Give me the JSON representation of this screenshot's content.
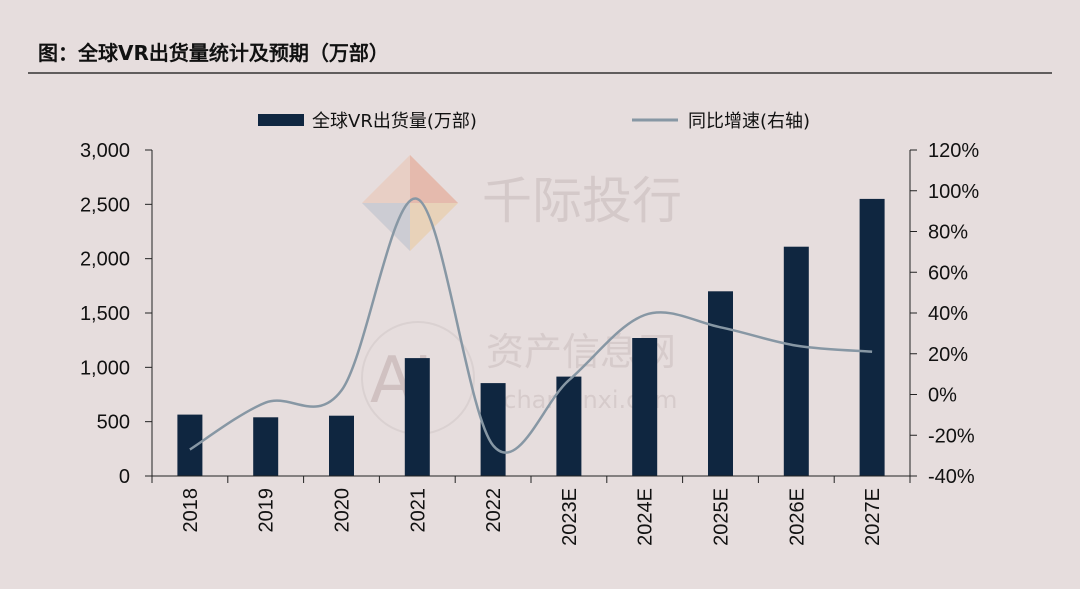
{
  "header": {
    "title": "图：全球VR出货量统计及预期（万部）"
  },
  "watermark": {
    "brand": "千际投行",
    "site_cn": "资产信息网",
    "site_en": "zichanxinxi.com",
    "logo_letters": "AI"
  },
  "colors": {
    "background": "#e6dddd",
    "bar": "#0f2640",
    "line": "#8797a4"
  },
  "chart_data": {
    "type": "bar",
    "categories": [
      "2018",
      "2019",
      "2020",
      "2021",
      "2022",
      "2023E",
      "2024E",
      "2025E",
      "2026E",
      "2027E"
    ],
    "series": [
      {
        "name": "全球VR出货量(万部)",
        "type": "bar",
        "axis": "left",
        "values": [
          565,
          540,
          555,
          1085,
          855,
          915,
          1270,
          1700,
          2110,
          2550
        ]
      },
      {
        "name": "同比增速(右轴)",
        "type": "line",
        "axis": "right",
        "smooth": true,
        "values": [
          -27,
          -4,
          2,
          96,
          -25,
          7,
          39,
          33,
          24,
          21
        ]
      }
    ],
    "y_left": {
      "min": 0,
      "max": 3000,
      "ticks": [
        0,
        500,
        1000,
        1500,
        2000,
        2500,
        3000
      ],
      "tick_labels": [
        "0",
        "500",
        "1,000",
        "1,500",
        "2,000",
        "2,500",
        "3,000"
      ]
    },
    "y_right": {
      "min": -40,
      "max": 120,
      "ticks": [
        -40,
        -20,
        0,
        20,
        40,
        60,
        80,
        100,
        120
      ],
      "tick_labels": [
        "-40%",
        "-20%",
        "0%",
        "20%",
        "40%",
        "60%",
        "80%",
        "100%",
        "120%"
      ]
    },
    "grid": false,
    "legend_position": "top-center"
  }
}
